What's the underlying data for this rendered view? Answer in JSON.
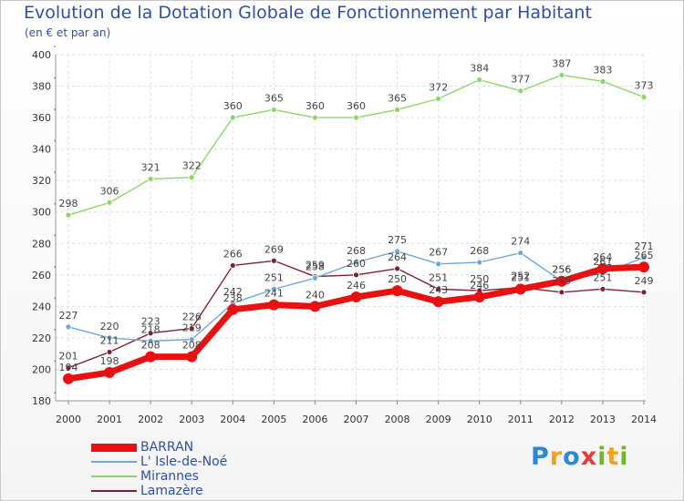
{
  "title": "Evolution de la Dotation Globale de Fonctionnement par Habitant",
  "subtitle": "(en € et par an)",
  "logo_text": "Proxiti",
  "chart_data": {
    "type": "line",
    "title": "Evolution de la Dotation Globale de Fonctionnement par Habitant",
    "subtitle": "(en € et par an)",
    "x": [
      2000,
      2001,
      2002,
      2003,
      2004,
      2005,
      2006,
      2007,
      2008,
      2009,
      2010,
      2011,
      2012,
      2013,
      2014
    ],
    "x_tick_labels": [
      "2000",
      "2001",
      "2002",
      "2003",
      "2004",
      "2005",
      "2006",
      "2007",
      "2008",
      "2009",
      "2010",
      "2011",
      "2012",
      "2013",
      "2014"
    ],
    "ylim": [
      180,
      400
    ],
    "y_ticks": [
      180,
      200,
      220,
      240,
      260,
      280,
      300,
      320,
      340,
      360,
      380,
      400
    ],
    "grid": true,
    "legend_position": "bottom-left",
    "series": [
      {
        "name": "BARRAN",
        "color": "#e81010",
        "values": [
          194,
          198,
          208,
          208,
          238,
          241,
          240,
          246,
          250,
          243,
          246,
          251,
          256,
          264,
          265
        ]
      },
      {
        "name": "L' Isle-de-Noé",
        "color": "#6fa8d8",
        "values": [
          227,
          220,
          218,
          219,
          242,
          251,
          258,
          268,
          275,
          267,
          268,
          274,
          256,
          261,
          271
        ]
      },
      {
        "name": "Mirannes",
        "color": "#8fd46a",
        "values": [
          298,
          306,
          321,
          322,
          360,
          365,
          360,
          360,
          365,
          372,
          384,
          377,
          387,
          383,
          373
        ]
      },
      {
        "name": "Lamazère",
        "color": "#7a2230",
        "values": [
          201,
          211,
          223,
          226,
          266,
          269,
          259,
          260,
          264,
          251,
          250,
          252,
          249,
          251,
          249
        ]
      }
    ]
  }
}
